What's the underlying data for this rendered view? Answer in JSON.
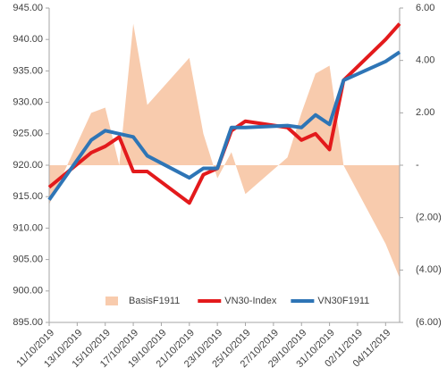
{
  "chart_data": {
    "type": "combo",
    "x": [
      "11/10/2019",
      "14/10/2019",
      "15/10/2019",
      "16/10/2019",
      "17/10/2019",
      "18/10/2019",
      "21/10/2019",
      "22/10/2019",
      "23/10/2019",
      "24/10/2019",
      "25/10/2019",
      "28/10/2019",
      "29/10/2019",
      "30/10/2019",
      "31/10/2019",
      "01/11/2019",
      "04/11/2019",
      "05/11/2019"
    ],
    "xlim": [
      "11/10/2019",
      "05/11/2019"
    ],
    "xticks": [
      "11/10/2019",
      "13/10/2019",
      "15/10/2019",
      "17/10/2019",
      "19/10/2019",
      "21/10/2019",
      "23/10/2019",
      "25/10/2019",
      "27/10/2019",
      "29/10/2019",
      "31/10/2019",
      "02/11/2019",
      "04/11/2019"
    ],
    "series": [
      {
        "name": "BasisF1911",
        "kind": "area",
        "axis": "y2",
        "color": "#f8cbad",
        "values": [
          -1.5,
          2.0,
          2.2,
          0.0,
          5.4,
          2.3,
          4.1,
          1.2,
          -0.5,
          0.5,
          -1.1,
          0.3,
          2.0,
          3.5,
          3.8,
          0.0,
          -3.0,
          -4.3
        ]
      },
      {
        "name": "VN30-Index",
        "kind": "line",
        "color": "#e31a1c",
        "values": [
          916.5,
          922.0,
          923.0,
          924.5,
          919.0,
          919.0,
          914.0,
          918.5,
          919.5,
          925.5,
          927.0,
          926.0,
          924.0,
          925.0,
          922.5,
          933.5,
          940.0,
          942.5
        ]
      },
      {
        "name": "VN30F1911",
        "kind": "line",
        "color": "#2e75b6",
        "values": [
          914.5,
          924.0,
          925.5,
          925.0,
          924.5,
          921.5,
          918.0,
          919.5,
          919.5,
          926.0,
          926.0,
          926.3,
          926.0,
          928.0,
          926.5,
          933.5,
          936.5,
          938.0
        ]
      }
    ],
    "ylim": [
      895,
      945
    ],
    "yticks": [
      {
        "value": 895,
        "label": "895.00"
      },
      {
        "value": 900,
        "label": "900.00"
      },
      {
        "value": 905,
        "label": "905.00"
      },
      {
        "value": 910,
        "label": "910.00"
      },
      {
        "value": 915,
        "label": "915.00"
      },
      {
        "value": 920,
        "label": "920.00"
      },
      {
        "value": 925,
        "label": "925.00"
      },
      {
        "value": 930,
        "label": "930.00"
      },
      {
        "value": 935,
        "label": "935.00"
      },
      {
        "value": 940,
        "label": "940.00"
      },
      {
        "value": 945,
        "label": "945.00"
      }
    ],
    "y2lim": [
      -6,
      6
    ],
    "y2ticks": [
      {
        "value": -6,
        "label": "(6.00)"
      },
      {
        "value": -4,
        "label": "(4.00)"
      },
      {
        "value": -2,
        "label": "(2.00)"
      },
      {
        "value": 0,
        "label": "-"
      },
      {
        "value": 2,
        "label": "2.00"
      },
      {
        "value": 4,
        "label": "4.00"
      },
      {
        "value": 6,
        "label": "6.00"
      }
    ],
    "legend": "bottom"
  }
}
